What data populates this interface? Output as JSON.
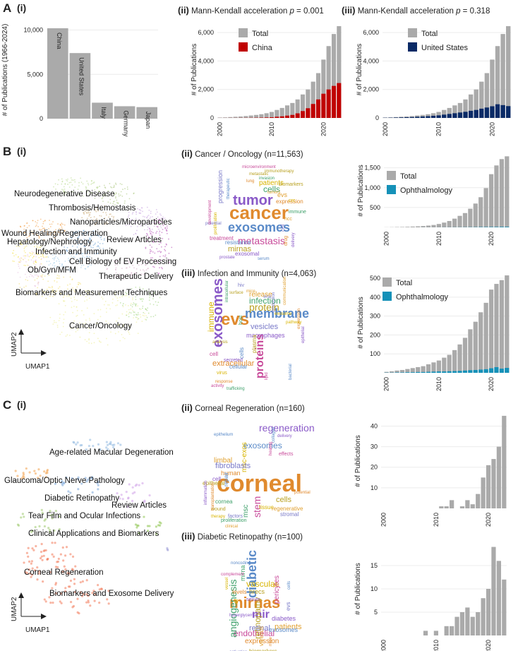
{
  "panels": {
    "A": {
      "letter": "A",
      "sub": "(i)"
    },
    "A_ii": {
      "sub": "(ii)",
      "title": "Mann-Kendall acceleration ",
      "p_text": "p",
      "p_value": " = 0.001"
    },
    "A_iii": {
      "sub": "(iii)",
      "title": "Mann-Kendall acceleration ",
      "p_text": "p",
      "p_value": " = 0.318"
    },
    "B": {
      "letter": "B",
      "sub": "(i)"
    },
    "B_ii": {
      "sub": "(ii)",
      "title": "Cancer / Oncology (n=11,563)"
    },
    "B_iii": {
      "sub": "(iii)",
      "title": "Infection and Immunity (n=4,063)"
    },
    "C": {
      "letter": "C",
      "sub": "(i)"
    },
    "C_ii": {
      "sub": "(ii)",
      "title": "Corneal Regeneration (n=160)"
    },
    "C_iii": {
      "sub": "(iii)",
      "title": "Diabetic Retinopathy (n=100)"
    }
  },
  "umap_B": {
    "xlabel": "UMAP1",
    "ylabel": "UMAP2",
    "clusters": [
      "Neurodegenerative Disease",
      "Thrombosis/Hemostasis",
      "Nanoparticles/Microparticles",
      "Wound Healing/Regeneration",
      "Hepatology/Nephrology",
      "Review Articles",
      "Infection and Immunity",
      "Cell Biology of EV Processing",
      "Ob/Gyn/MFM",
      "Therapeutic Delivery",
      "Biomarkers and Measurement Techniques",
      "Cancer/Oncology"
    ]
  },
  "umap_C": {
    "xlabel": "UMAP1",
    "ylabel": "UMAP2",
    "clusters": [
      "Age-related Macular Degeneration",
      "Glaucoma/Optic Nerve Pathology",
      "Diabetic Retinopathy",
      "Review Articles",
      "Tear Film and Ocular Infections",
      "Clinical Applications and Biomarkers",
      "Corneal Regeneration",
      "Biomarkers and Exosome Delivery"
    ]
  },
  "wordclouds": {
    "cancer": [
      "cancer",
      "tumor",
      "exosomes",
      "metastasis",
      "mirnas",
      "cells",
      "patients",
      "progression",
      "evs",
      "expression",
      "exosomal",
      "resistance",
      "treatment",
      "biomarkers",
      "immune",
      "crc",
      "cell",
      "hcc",
      "drug",
      "delivery",
      "therapeutic",
      "microenvironment",
      "metastatic",
      "invasion",
      "proliferation",
      "potential",
      "tumors",
      "lung",
      "prostate",
      "serum",
      "development",
      "immunotherapy"
    ],
    "infection": [
      "evs",
      "exosomes",
      "membrane",
      "proteins",
      "protein",
      "infection",
      "immune",
      "vesicles",
      "release",
      "extracellular",
      "macrophages",
      "cells",
      "cell",
      "plasma",
      "host",
      "virus",
      "hiv",
      "mice",
      "response",
      "secreted",
      "cellular",
      "activity",
      "analysis",
      "trafficking",
      "exosome",
      "production",
      "communication",
      "expression",
      "epithelial",
      "bacterial",
      "lipid",
      "surface",
      "intracellular",
      "pathway",
      "viral"
    ],
    "corneal": [
      "corneal",
      "regeneration",
      "exosomes",
      "stem",
      "cells",
      "msc",
      "msc-exos",
      "fibroblasts",
      "limbal",
      "human",
      "cell",
      "repair",
      "effects",
      "epithelial",
      "cornea",
      "tissue",
      "stromal",
      "regenerative",
      "potential",
      "delivery",
      "collagen",
      "healing",
      "wound",
      "proliferation",
      "therapy",
      "factors",
      "clinical",
      "transplantation",
      "inflammation",
      "epithelium"
    ],
    "diabetic": [
      "mirnas",
      "mir",
      "diabetic",
      "endothelial",
      "retinopathy",
      "angiogenesis",
      "vascular",
      "retinal",
      "patients",
      "expression",
      "diabetes",
      "exosomes",
      "pericytes",
      "hrecs",
      "mirna",
      "dr",
      "evs",
      "vitreous",
      "levels",
      "serum",
      "noncoding",
      "complement",
      "biomarkers",
      "microparticles",
      "vessel",
      "activation",
      "pdr",
      "mice",
      "hyperglycemia",
      "cells"
    ]
  },
  "chart_data": [
    {
      "id": "A_i",
      "type": "bar",
      "title": "",
      "xlabel": "",
      "ylabel": "# of Publications (1966-2024)",
      "categories": [
        "China",
        "United States",
        "Italy",
        "Germany",
        "Japan"
      ],
      "values": [
        10200,
        7400,
        1800,
        1400,
        1300
      ],
      "ylim": [
        0,
        11000
      ],
      "yticks": [
        0,
        5000,
        10000
      ],
      "ytick_labels": [
        "0",
        "5,000",
        "10,000"
      ]
    },
    {
      "id": "A_ii",
      "type": "bar",
      "title": "Mann-Kendall acceleration p = 0.001",
      "xlabel": "",
      "ylabel": "# of Publications",
      "x": [
        2000,
        2001,
        2002,
        2003,
        2004,
        2005,
        2006,
        2007,
        2008,
        2009,
        2010,
        2011,
        2012,
        2013,
        2014,
        2015,
        2016,
        2017,
        2018,
        2019,
        2020,
        2021,
        2022,
        2023
      ],
      "series": [
        {
          "name": "Total",
          "color": "#aaaaaa",
          "values": [
            30,
            40,
            60,
            80,
            100,
            130,
            170,
            210,
            260,
            330,
            420,
            560,
            700,
            880,
            1050,
            1300,
            1650,
            2000,
            2550,
            3150,
            4100,
            5050,
            5900,
            6450
          ]
        },
        {
          "name": "China",
          "color": "#c00000",
          "values": [
            2,
            3,
            5,
            6,
            8,
            10,
            14,
            18,
            25,
            35,
            50,
            80,
            110,
            160,
            210,
            320,
            480,
            680,
            980,
            1300,
            1700,
            2000,
            2250,
            2450
          ]
        }
      ],
      "ylim": [
        0,
        6800
      ],
      "yticks": [
        0,
        2000,
        4000,
        6000
      ],
      "ytick_labels": [
        "0",
        "2,000",
        "4,000",
        "6,000"
      ],
      "xticks": [
        2000,
        2010,
        2020
      ]
    },
    {
      "id": "A_iii",
      "type": "bar",
      "title": "Mann-Kendall acceleration p = 0.318",
      "xlabel": "",
      "ylabel": "# of Publications",
      "x": [
        2000,
        2001,
        2002,
        2003,
        2004,
        2005,
        2006,
        2007,
        2008,
        2009,
        2010,
        2011,
        2012,
        2013,
        2014,
        2015,
        2016,
        2017,
        2018,
        2019,
        2020,
        2021,
        2022,
        2023
      ],
      "series": [
        {
          "name": "Total",
          "color": "#aaaaaa",
          "values": [
            30,
            40,
            60,
            80,
            100,
            130,
            170,
            210,
            260,
            330,
            420,
            560,
            700,
            880,
            1050,
            1300,
            1650,
            2000,
            2550,
            3150,
            4100,
            5050,
            5900,
            6450
          ]
        },
        {
          "name": "United States",
          "color": "#0a2a66",
          "values": [
            15,
            20,
            30,
            40,
            50,
            60,
            80,
            100,
            120,
            150,
            180,
            230,
            280,
            330,
            380,
            430,
            500,
            560,
            650,
            730,
            820,
            960,
            900,
            830
          ]
        }
      ],
      "ylim": [
        0,
        6800
      ],
      "yticks": [
        0,
        2000,
        4000,
        6000
      ],
      "ytick_labels": [
        "0",
        "2,000",
        "4,000",
        "6,000"
      ],
      "xticks": [
        2000,
        2010,
        2020
      ]
    },
    {
      "id": "B_ii",
      "type": "bar",
      "title": "",
      "xlabel": "",
      "ylabel": "# of Publications",
      "x": [
        2000,
        2001,
        2002,
        2003,
        2004,
        2005,
        2006,
        2007,
        2008,
        2009,
        2010,
        2011,
        2012,
        2013,
        2014,
        2015,
        2016,
        2017,
        2018,
        2019,
        2020,
        2021,
        2022,
        2023
      ],
      "series": [
        {
          "name": "Total",
          "color": "#aaaaaa",
          "values": [
            3,
            5,
            8,
            10,
            14,
            20,
            26,
            34,
            45,
            60,
            85,
            120,
            160,
            220,
            290,
            360,
            470,
            600,
            760,
            990,
            1340,
            1560,
            1720,
            1790
          ]
        },
        {
          "name": "Ophthalmology",
          "color": "#1591b8",
          "values": [
            0,
            0,
            0,
            0,
            0,
            0,
            0,
            1,
            1,
            1,
            1,
            2,
            2,
            3,
            3,
            4,
            5,
            6,
            8,
            9,
            10,
            11,
            13,
            14
          ]
        }
      ],
      "ylim": [
        0,
        1850
      ],
      "yticks": [
        500,
        1000,
        1500
      ],
      "ytick_labels": [
        "500",
        "1,000",
        "1,500"
      ],
      "xticks": [
        2000,
        2010,
        2020
      ]
    },
    {
      "id": "B_iii",
      "type": "bar",
      "title": "",
      "xlabel": "",
      "ylabel": "# of Publications",
      "x": [
        2000,
        2001,
        2002,
        2003,
        2004,
        2005,
        2006,
        2007,
        2008,
        2009,
        2010,
        2011,
        2012,
        2013,
        2014,
        2015,
        2016,
        2017,
        2018,
        2019,
        2020,
        2021,
        2022,
        2023
      ],
      "series": [
        {
          "name": "Total",
          "color": "#aaaaaa",
          "values": [
            5,
            8,
            12,
            15,
            20,
            25,
            30,
            35,
            45,
            55,
            65,
            80,
            95,
            120,
            150,
            185,
            230,
            270,
            320,
            370,
            440,
            470,
            490,
            515
          ]
        },
        {
          "name": "Ophthalmology",
          "color": "#1591b8",
          "values": [
            1,
            1,
            2,
            2,
            3,
            3,
            4,
            4,
            5,
            6,
            7,
            7,
            8,
            9,
            10,
            12,
            14,
            15,
            17,
            19,
            24,
            30,
            22,
            26
          ]
        }
      ],
      "ylim": [
        0,
        530
      ],
      "yticks": [
        100,
        200,
        300,
        400,
        500
      ],
      "ytick_labels": [
        "100",
        "200",
        "300",
        "400",
        "500"
      ],
      "xticks": [
        2000,
        2010,
        2020
      ]
    },
    {
      "id": "C_ii",
      "type": "bar",
      "title": "",
      "xlabel": "",
      "ylabel": "# of Publications",
      "x": [
        2000,
        2001,
        2002,
        2003,
        2004,
        2005,
        2006,
        2007,
        2008,
        2009,
        2010,
        2011,
        2012,
        2013,
        2014,
        2015,
        2016,
        2017,
        2018,
        2019,
        2020,
        2021,
        2022,
        2023
      ],
      "series": [
        {
          "name": "Total",
          "color": "#aaaaaa",
          "values": [
            0,
            0,
            0,
            0,
            0,
            0,
            0,
            0,
            0,
            0,
            0,
            1,
            1,
            4,
            0,
            1,
            4,
            2,
            7,
            15,
            21,
            24,
            30,
            45
          ]
        }
      ],
      "ylim": [
        0,
        46
      ],
      "yticks": [
        10,
        20,
        30,
        40
      ],
      "ytick_labels": [
        "10",
        "20",
        "30",
        "40"
      ],
      "xticks": [
        2000,
        2010,
        2020
      ]
    },
    {
      "id": "C_iii",
      "type": "bar",
      "title": "",
      "xlabel": "",
      "ylabel": "# of Publications",
      "x": [
        2000,
        2001,
        2002,
        2003,
        2004,
        2005,
        2006,
        2007,
        2008,
        2009,
        2010,
        2011,
        2012,
        2013,
        2014,
        2015,
        2016,
        2017,
        2018,
        2019,
        2020,
        2021,
        2022,
        2023
      ],
      "series": [
        {
          "name": "Total",
          "color": "#aaaaaa",
          "values": [
            0,
            0,
            0,
            0,
            0,
            0,
            0,
            0,
            1,
            0,
            1,
            0,
            2,
            2,
            4,
            5,
            6,
            4,
            5,
            8,
            10,
            19,
            16,
            12
          ]
        }
      ],
      "ylim": [
        0,
        20
      ],
      "yticks": [
        5,
        10,
        15
      ],
      "ytick_labels": [
        "5",
        "10",
        "15"
      ],
      "xticks": [
        2000,
        2010,
        2020
      ]
    }
  ]
}
